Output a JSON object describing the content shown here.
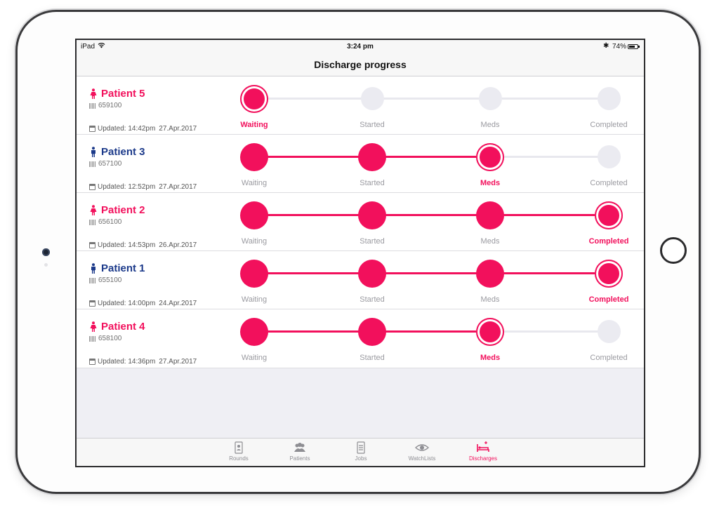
{
  "status_bar": {
    "carrier": "iPad",
    "time": "3:24 pm",
    "battery_percent": "74%",
    "battery_level": 0.74
  },
  "nav": {
    "title": "Discharge progress"
  },
  "steps": [
    "Waiting",
    "Started",
    "Meds",
    "Completed"
  ],
  "patients": [
    {
      "name": "Patient 5",
      "gender": "female",
      "id": "659100",
      "updated_label": "Updated: 14:42pm",
      "updated_date": "27.Apr.2017",
      "current_step": 0
    },
    {
      "name": "Patient 3",
      "gender": "male",
      "id": "657100",
      "updated_label": "Updated: 12:52pm",
      "updated_date": "27.Apr.2017",
      "current_step": 2
    },
    {
      "name": "Patient 2",
      "gender": "female",
      "id": "656100",
      "updated_label": "Updated: 14:53pm",
      "updated_date": "26.Apr.2017",
      "current_step": 3
    },
    {
      "name": "Patient 1",
      "gender": "male",
      "id": "655100",
      "updated_label": "Updated: 14:00pm",
      "updated_date": "24.Apr.2017",
      "current_step": 3
    },
    {
      "name": "Patient 4",
      "gender": "female",
      "id": "658100",
      "updated_label": "Updated: 14:36pm",
      "updated_date": "27.Apr.2017",
      "current_step": 2
    }
  ],
  "tab_bar": {
    "items": [
      {
        "label": "Rounds",
        "icon": "clipboard-badge-icon",
        "active": false
      },
      {
        "label": "Patients",
        "icon": "people-group-icon",
        "active": false
      },
      {
        "label": "Jobs",
        "icon": "checklist-icon",
        "active": false
      },
      {
        "label": "WatchLists",
        "icon": "eye-icon",
        "active": false
      },
      {
        "label": "Discharges",
        "icon": "hospital-bed-icon",
        "active": true
      }
    ]
  },
  "colors": {
    "accent": "#f2105c",
    "male": "#1c3a8a",
    "inactive": "#9a9aa0",
    "pending_dot": "#ebebf1"
  }
}
